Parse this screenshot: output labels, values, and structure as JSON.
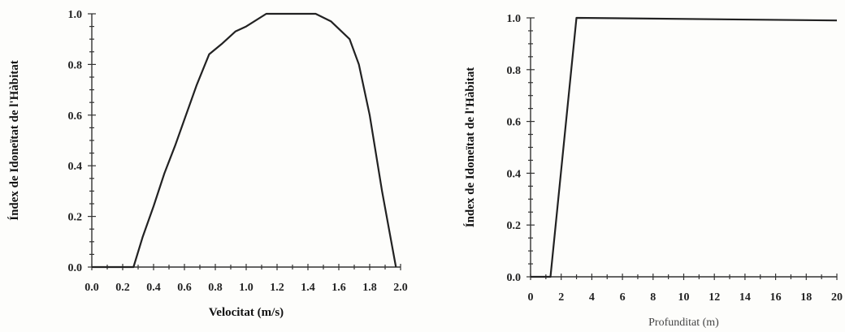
{
  "chart_data": [
    {
      "type": "line",
      "title": "",
      "xlabel": "Velocitat (m/s)",
      "ylabel": "Índex de Idoneïtat de l'Hàbitat",
      "xlim": [
        0,
        2.0
      ],
      "ylim": [
        0,
        1.0
      ],
      "xticks": [
        "0.0",
        "0.2",
        "0.4",
        "0.6",
        "0.8",
        "1.0",
        "1.2",
        "1.4",
        "1.6",
        "1.8",
        "2.0"
      ],
      "xtick_values": [
        0,
        0.2,
        0.4,
        0.6,
        0.8,
        1.0,
        1.2,
        1.4,
        1.6,
        1.8,
        2.0
      ],
      "yticks": [
        "0.0",
        "0.2",
        "0.4",
        "0.6",
        "0.8",
        "1.0"
      ],
      "ytick_values": [
        0,
        0.2,
        0.4,
        0.6,
        0.8,
        1.0
      ],
      "grid": false,
      "x": [
        0,
        0.27,
        0.33,
        0.4,
        0.47,
        0.54,
        0.61,
        0.68,
        0.76,
        0.84,
        0.93,
        1.0,
        1.13,
        1.45,
        1.55,
        1.67,
        1.73,
        1.8,
        1.88,
        1.97
      ],
      "y": [
        0,
        0,
        0.12,
        0.24,
        0.37,
        0.48,
        0.6,
        0.72,
        0.84,
        0.88,
        0.93,
        0.95,
        1.0,
        1.0,
        0.97,
        0.9,
        0.8,
        0.6,
        0.3,
        0
      ]
    },
    {
      "type": "line",
      "title": "",
      "xlabel": "Profunditat (m)",
      "ylabel": "Índex de Idoneïtat de l'Hàbitat",
      "xlim": [
        0,
        20
      ],
      "ylim": [
        0,
        1.0
      ],
      "xticks": [
        "0",
        "2",
        "4",
        "6",
        "8",
        "10",
        "12",
        "14",
        "16",
        "18",
        "20"
      ],
      "xtick_values": [
        0,
        2,
        4,
        6,
        8,
        10,
        12,
        14,
        16,
        18,
        20
      ],
      "yticks": [
        "0.0",
        "0.2",
        "0.4",
        "0.6",
        "0.8",
        "1.0"
      ],
      "ytick_values": [
        0,
        0.2,
        0.4,
        0.6,
        0.8,
        1.0
      ],
      "grid": false,
      "x": [
        0,
        1.3,
        3.0,
        20
      ],
      "y": [
        0,
        0,
        1.0,
        0.99
      ]
    }
  ]
}
